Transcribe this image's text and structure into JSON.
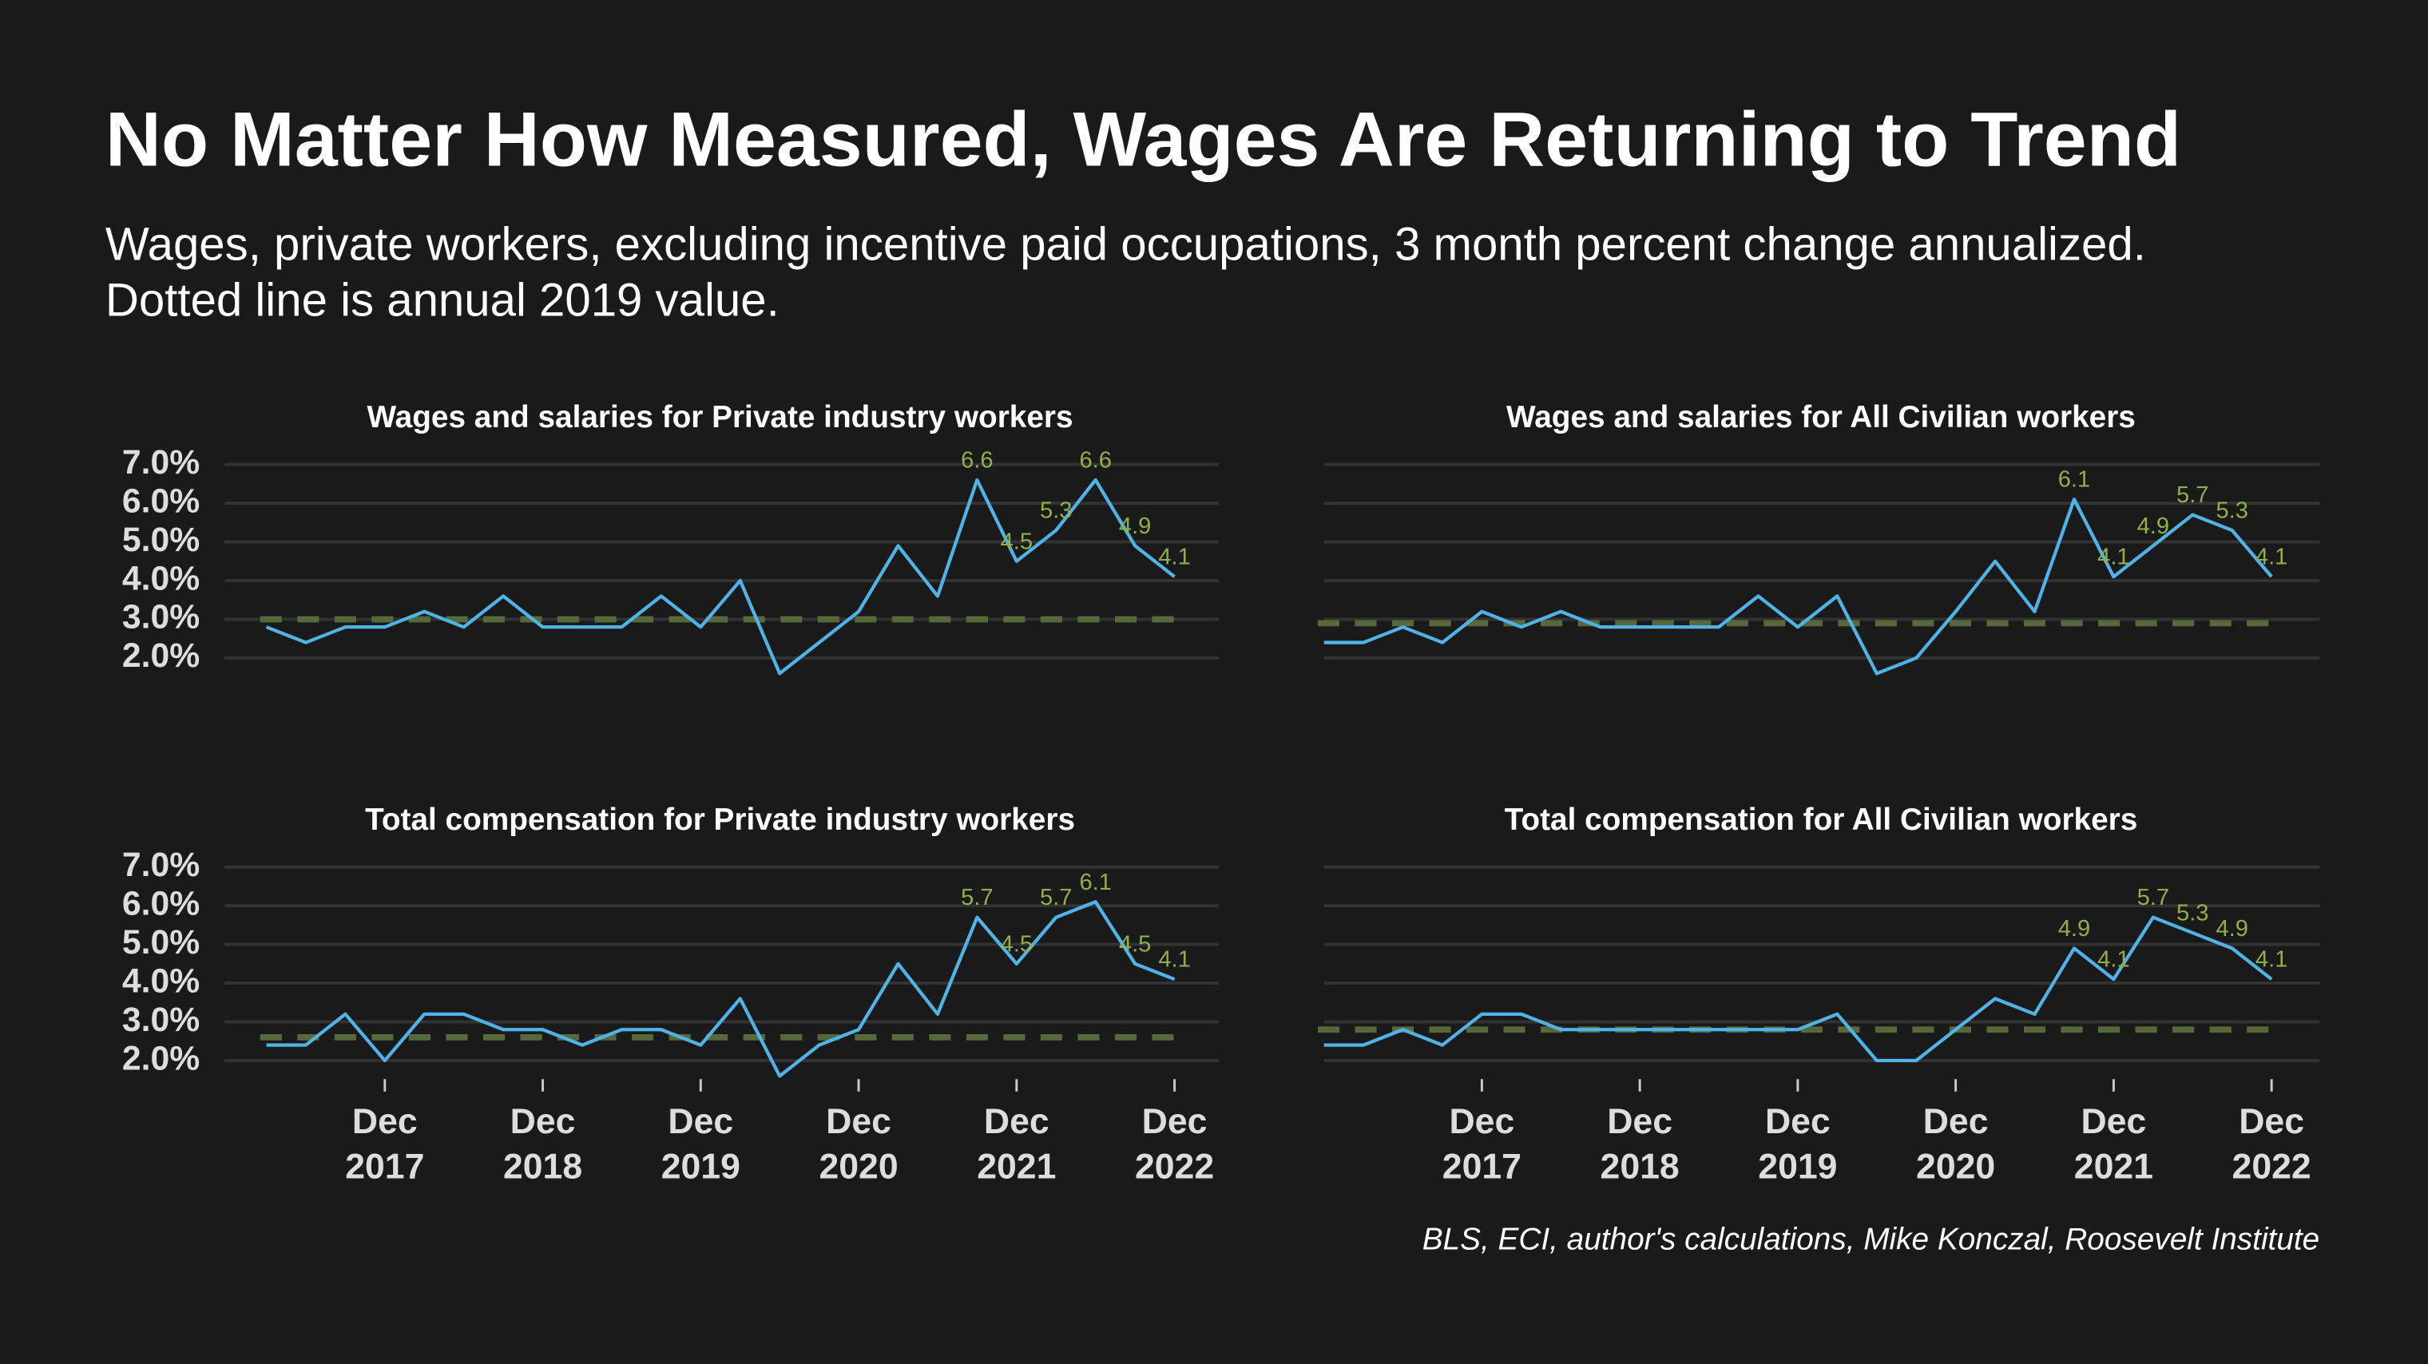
{
  "title": "No Matter How Measured, Wages Are Returning to Trend",
  "subtitle": [
    "Wages, private workers, excluding incentive paid occupations, 3 month percent change annualized.",
    "Dotted line is annual 2019 value."
  ],
  "source": "BLS, ECI, author's calculations, Mike Konczal, Roosevelt Institute",
  "chart_data": [
    {
      "type": "line",
      "title": "Wages and salaries for Private industry workers",
      "series": [
        {
          "color": "#4fb3e8",
          "values": [
            2.8,
            2.4,
            2.8,
            2.8,
            3.2,
            2.8,
            3.6,
            2.8,
            2.8,
            2.8,
            3.6,
            2.8,
            4.0,
            1.6,
            2.4,
            3.2,
            4.9,
            3.6,
            6.6,
            4.5,
            5.3,
            6.6,
            4.9,
            4.1
          ],
          "value_labels": [
            null,
            null,
            null,
            null,
            null,
            null,
            null,
            null,
            null,
            null,
            null,
            null,
            null,
            null,
            null,
            null,
            null,
            null,
            "6.6",
            "4.5",
            "5.3",
            "6.6",
            "4.9",
            "4.1"
          ]
        }
      ],
      "ylim": [
        1.5,
        7.0
      ],
      "yticks": [
        {
          "value": 2,
          "label": "2.0%"
        },
        {
          "value": 3,
          "label": "3.0%"
        },
        {
          "value": 4,
          "label": "4.0%"
        },
        {
          "value": 5,
          "label": "5.0%"
        },
        {
          "value": 6,
          "label": "6.0%"
        },
        {
          "value": 7,
          "label": "7.0%"
        }
      ],
      "reference": 3.0,
      "reference_color": "#56693a",
      "grid": true
    },
    {
      "type": "line",
      "title": "Wages and salaries for All Civilian workers",
      "series": [
        {
          "color": "#4fb3e8",
          "values": [
            2.4,
            2.4,
            2.8,
            2.4,
            3.2,
            2.8,
            3.2,
            2.8,
            2.8,
            2.8,
            2.8,
            3.6,
            2.8,
            3.6,
            1.6,
            2.0,
            3.2,
            4.5,
            3.2,
            6.1,
            4.1,
            4.9,
            5.7,
            5.3,
            4.1
          ],
          "value_labels": [
            null,
            null,
            null,
            null,
            null,
            null,
            null,
            null,
            null,
            null,
            null,
            null,
            null,
            null,
            null,
            null,
            null,
            null,
            null,
            "6.1",
            "4.1",
            "4.9",
            "5.7",
            "5.3",
            "4.1"
          ]
        }
      ],
      "ylim": [
        1.5,
        7.0
      ],
      "yticks": [
        2,
        3,
        4,
        5,
        6,
        7
      ],
      "ytick_labels": false,
      "reference": 2.9,
      "reference_color": "#56693a",
      "grid": true
    },
    {
      "type": "line",
      "title": "Total compensation for Private industry workers",
      "categories": [
        null,
        null,
        null,
        "Dec 2017",
        null,
        null,
        null,
        "Dec 2018",
        null,
        null,
        null,
        "Dec 2019",
        null,
        null,
        null,
        "Dec 2020",
        null,
        null,
        null,
        "Dec 2021",
        null,
        null,
        null,
        "Dec 2022"
      ],
      "series": [
        {
          "color": "#4fb3e8",
          "values": [
            2.4,
            2.4,
            3.2,
            2.0,
            3.2,
            3.2,
            2.8,
            2.8,
            2.4,
            2.8,
            2.8,
            2.4,
            3.6,
            1.6,
            2.4,
            2.8,
            4.5,
            3.2,
            5.7,
            4.5,
            5.7,
            6.1,
            4.5,
            4.1
          ],
          "value_labels": [
            null,
            null,
            null,
            null,
            null,
            null,
            null,
            null,
            null,
            null,
            null,
            null,
            null,
            null,
            null,
            null,
            null,
            null,
            "5.7",
            "4.5",
            "5.7",
            "6.1",
            "4.5",
            "4.1"
          ]
        }
      ],
      "ylim": [
        1.5,
        7.0
      ],
      "yticks": [
        {
          "value": 2,
          "label": "2.0%"
        },
        {
          "value": 3,
          "label": "3.0%"
        },
        {
          "value": 4,
          "label": "4.0%"
        },
        {
          "value": 5,
          "label": "5.0%"
        },
        {
          "value": 6,
          "label": "6.0%"
        },
        {
          "value": 7,
          "label": "7.0%"
        }
      ],
      "reference": 2.6,
      "reference_color": "#56693a",
      "grid": true
    },
    {
      "type": "line",
      "title": "Total compensation for All Civilian workers",
      "categories": [
        null,
        null,
        null,
        null,
        "Dec 2017",
        null,
        null,
        null,
        "Dec 2018",
        null,
        null,
        null,
        "Dec 2019",
        null,
        null,
        null,
        "Dec 2020",
        null,
        null,
        null,
        "Dec 2021",
        null,
        null,
        null,
        "Dec 2022"
      ],
      "series": [
        {
          "color": "#4fb3e8",
          "values": [
            2.4,
            2.4,
            2.8,
            2.4,
            3.2,
            3.2,
            2.8,
            2.8,
            2.8,
            2.8,
            2.8,
            2.8,
            2.8,
            3.2,
            2.0,
            2.0,
            2.8,
            3.6,
            3.2,
            4.9,
            4.1,
            5.7,
            5.3,
            4.9,
            4.1
          ],
          "value_labels": [
            null,
            null,
            null,
            null,
            null,
            null,
            null,
            null,
            null,
            null,
            null,
            null,
            null,
            null,
            null,
            null,
            null,
            null,
            null,
            "4.9",
            "4.1",
            "5.7",
            "5.3",
            "4.9",
            "4.1"
          ]
        }
      ],
      "ylim": [
        1.5,
        7.0
      ],
      "yticks": [
        2,
        3,
        4,
        5,
        6,
        7
      ],
      "ytick_labels": false,
      "reference": 2.8,
      "reference_color": "#56693a",
      "grid": true
    }
  ]
}
